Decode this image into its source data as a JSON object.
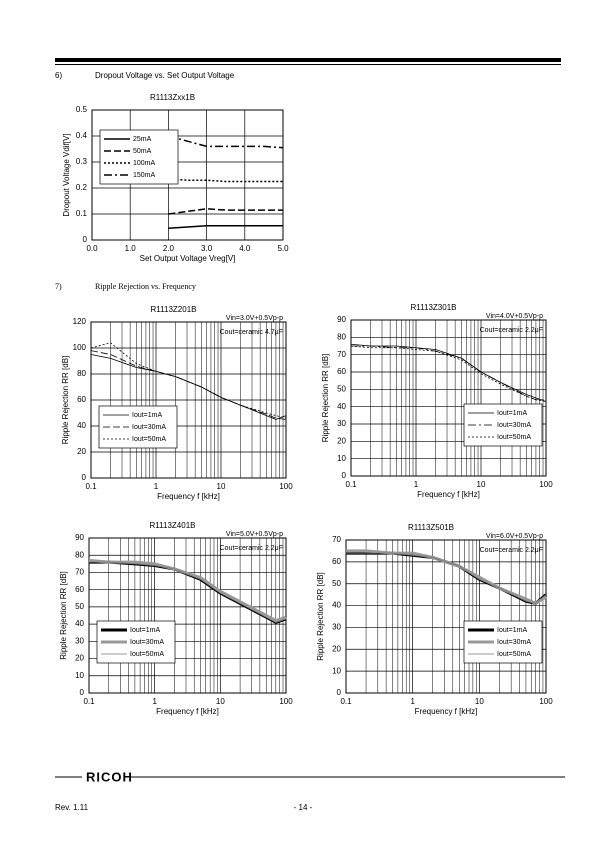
{
  "sections": [
    {
      "number": "6)",
      "title": "Dropout Voltage vs. Set Output Voltage"
    },
    {
      "number": "7)",
      "title": "Ripple Rejection vs. Frequency"
    }
  ],
  "charts": [
    {
      "type": "line",
      "title": "R1113Zxx1B",
      "xlabel": "Set Output Voltage Vreg[V]",
      "ylabel": "Dropout Voltage Vdif[V]",
      "log_x": false,
      "grid": true,
      "legend": "upper left",
      "x": [
        2,
        2.5,
        3,
        3.5,
        4,
        4.5,
        5
      ],
      "series": [
        {
          "name": "25mA",
          "color": "#000000",
          "style": "solid",
          "width": 1.5,
          "values": [
            0.045,
            0.05,
            0.055,
            0.055,
            0.055,
            0.055,
            0.055
          ]
        },
        {
          "name": "50mA",
          "color": "#000000",
          "style": "dashed",
          "width": 1.5,
          "values": [
            0.1,
            0.11,
            0.12,
            0.115,
            0.115,
            0.115,
            0.115
          ]
        },
        {
          "name": "100mA",
          "color": "#000000",
          "style": "dotted",
          "width": 1.5,
          "values": [
            0.235,
            0.23,
            0.23,
            0.225,
            0.225,
            0.225,
            0.225
          ]
        },
        {
          "name": "150mA",
          "color": "#000000",
          "style": "dashdot",
          "width": 1.5,
          "values": [
            0.4,
            0.38,
            0.36,
            0.36,
            0.36,
            0.36,
            0.355
          ]
        }
      ],
      "xlim": [
        0,
        5
      ],
      "xticks": [
        {
          "value": 0,
          "label": "0.0"
        },
        {
          "value": 1,
          "label": "1.0"
        },
        {
          "value": 2,
          "label": "2.0"
        },
        {
          "value": 3,
          "label": "3.0"
        },
        {
          "value": 4,
          "label": "4.0"
        },
        {
          "value": 5,
          "label": "5.0"
        }
      ],
      "ylim": [
        0,
        0.5
      ],
      "yticks": [
        0,
        0.1,
        0.2,
        0.3,
        0.4,
        0.5
      ]
    },
    {
      "type": "line",
      "title": "R1113Z201B",
      "annotations": [
        "Vin=3.0V+0.5Vp-p",
        "Cout=ceramic 4.7μF"
      ],
      "xlabel": "Frequency f [kHz]",
      "ylabel": "Ripple Rejection RR [dB]",
      "log_x": true,
      "grid": true,
      "legend": "lower left",
      "x": [
        0.1,
        0.2,
        0.5,
        1,
        2,
        5,
        10,
        20,
        50,
        70,
        100
      ],
      "series": [
        {
          "name": "Iout=1mA",
          "color": "#000000",
          "style": "solid",
          "width": 0.8,
          "values": [
            95,
            92,
            85,
            82,
            78,
            70,
            62,
            56,
            48,
            45,
            48
          ]
        },
        {
          "name": "Iout=30mA",
          "color": "#000000",
          "style": "dashed",
          "width": 0.8,
          "values": [
            98,
            95,
            86,
            82,
            78,
            70,
            62,
            56,
            49,
            46,
            45
          ]
        },
        {
          "name": "Iout=50mA",
          "color": "#000000",
          "style": "dotted",
          "width": 0.8,
          "values": [
            100,
            104,
            88,
            82,
            78,
            70,
            62,
            56,
            50,
            48,
            46
          ]
        }
      ],
      "xlim": [
        0.1,
        100
      ],
      "xticks": [
        0.1,
        1,
        10,
        100
      ],
      "ylim": [
        0,
        120
      ],
      "yticks": [
        0,
        20,
        40,
        60,
        80,
        100,
        120
      ]
    },
    {
      "type": "line",
      "title": "R1113Z301B",
      "annotations": [
        "Vin=4.0V+0.5Vp-p",
        "Cout=ceramic 2.2μF"
      ],
      "xlabel": "Frequency f [kHz]",
      "ylabel": "Ripple Rejection RR [dB]",
      "log_x": true,
      "grid": true,
      "legend": "lower right",
      "x": [
        0.1,
        0.2,
        0.5,
        1,
        2,
        5,
        10,
        20,
        50,
        70,
        100
      ],
      "series": [
        {
          "name": "Iout=1mA",
          "color": "#000000",
          "style": "solid",
          "width": 0.8,
          "values": [
            76,
            75,
            75,
            74,
            73,
            68,
            60,
            54,
            47,
            45,
            43
          ]
        },
        {
          "name": "Iout=30mA",
          "color": "#000000",
          "style": "dashdot",
          "width": 0.8,
          "values": [
            75,
            75,
            74,
            74,
            72,
            68,
            60,
            54,
            46,
            44,
            44
          ]
        },
        {
          "name": "Iout=50mA",
          "color": "#000000",
          "style": "dotted",
          "width": 0.8,
          "values": [
            75,
            74,
            74,
            73,
            72,
            67,
            59,
            53,
            46,
            44,
            43
          ]
        }
      ],
      "xlim": [
        0.1,
        100
      ],
      "xticks": [
        0.1,
        1,
        10,
        100
      ],
      "ylim": [
        0,
        90
      ],
      "yticks": [
        0,
        10,
        20,
        30,
        40,
        50,
        60,
        70,
        80,
        90
      ]
    },
    {
      "type": "line",
      "title": "R1113Z401B",
      "annotations": [
        "Vin=5.0V+0.5Vp-p",
        "Cout=ceramic 2.2μF"
      ],
      "xlabel": "Frequency f [kHz]",
      "ylabel": "Ripple Rejection RR [dB]",
      "log_x": true,
      "grid": true,
      "legend": "lower left",
      "x": [
        0.1,
        0.2,
        0.5,
        1,
        2,
        5,
        10,
        20,
        50,
        70,
        100
      ],
      "series": [
        {
          "name": "Iout=1mA",
          "color": "#000000",
          "style": "solid",
          "width": 3,
          "values": [
            76,
            76,
            75,
            74,
            72,
            66,
            58,
            52,
            44,
            41,
            43
          ]
        },
        {
          "name": "Iout=30mA",
          "color": "#999999",
          "style": "solid",
          "width": 3,
          "values": [
            77,
            76,
            76,
            75,
            72,
            67,
            59,
            53,
            45,
            42,
            44
          ]
        },
        {
          "name": "Iout=50mA",
          "color": "#777777",
          "style": "solid",
          "width": 0.8,
          "values": [
            76,
            76,
            75,
            74,
            72,
            66,
            58,
            52,
            44,
            41,
            43
          ]
        }
      ],
      "xlim": [
        0.1,
        100
      ],
      "xticks": [
        0.1,
        1,
        10,
        100
      ],
      "ylim": [
        0,
        90
      ],
      "yticks": [
        0,
        10,
        20,
        30,
        40,
        50,
        60,
        70,
        80,
        90
      ]
    },
    {
      "type": "line",
      "title": "R1113Z501B",
      "annotations": [
        "Vin=6.0V+0.5Vp-p",
        "Cout=ceramic 2.2μF"
      ],
      "xlabel": "Frequency f [kHz]",
      "ylabel": "Ripple Rejection RR [dB]",
      "log_x": true,
      "grid": true,
      "legend": "lower right",
      "x": [
        0.1,
        0.2,
        0.5,
        1,
        2,
        5,
        10,
        20,
        50,
        70,
        100
      ],
      "series": [
        {
          "name": "Iout=1mA",
          "color": "#000000",
          "style": "solid",
          "width": 3,
          "values": [
            64,
            64,
            64,
            63,
            62,
            58,
            52,
            48,
            42,
            41,
            45
          ]
        },
        {
          "name": "Iout=30mA",
          "color": "#999999",
          "style": "solid",
          "width": 3,
          "values": [
            65,
            65,
            64,
            64,
            62,
            58,
            53,
            48,
            43,
            41,
            44
          ]
        },
        {
          "name": "Iout=50mA",
          "color": "#777777",
          "style": "solid",
          "width": 0.8,
          "values": [
            64,
            64,
            64,
            63,
            62,
            58,
            52,
            48,
            42,
            41,
            45
          ]
        }
      ],
      "xlim": [
        0.1,
        100
      ],
      "xticks": [
        0.1,
        1,
        10,
        100
      ],
      "ylim": [
        0,
        70
      ],
      "yticks": [
        0,
        10,
        20,
        30,
        40,
        50,
        60,
        70
      ]
    }
  ],
  "footer": {
    "logo": "RICOH",
    "revision": "Rev. 1.11",
    "page": "- 14 -"
  }
}
